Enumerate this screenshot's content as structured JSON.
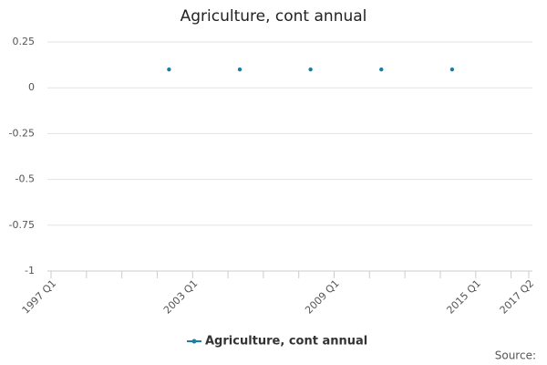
{
  "chart_data": {
    "type": "line",
    "title": "Agriculture, cont annual",
    "source": "Source:",
    "categories": [
      "1997 Q1",
      null,
      null,
      null,
      null,
      null,
      null,
      null,
      null,
      null,
      null,
      null,
      null,
      null,
      null,
      null,
      null,
      null,
      null,
      null,
      null,
      null,
      null,
      null,
      "2003 Q1",
      null,
      null,
      null,
      null,
      null,
      null,
      null,
      null,
      null,
      null,
      null,
      null,
      null,
      null,
      null,
      null,
      null,
      null,
      null,
      null,
      null,
      null,
      null,
      "2009 Q1",
      null,
      null,
      null,
      null,
      null,
      null,
      null,
      null,
      null,
      null,
      null,
      null,
      null,
      null,
      null,
      null,
      null,
      null,
      null,
      null,
      null,
      null,
      null,
      "2015 Q1",
      null,
      null,
      null,
      null,
      null,
      null,
      null,
      null,
      "2017 Q2"
    ],
    "series": [
      {
        "name": "Agriculture, cont annual",
        "color": "#1a7fa8",
        "values": [
          null,
          null,
          null,
          null,
          null,
          null,
          null,
          null,
          null,
          null,
          null,
          null,
          null,
          null,
          null,
          null,
          null,
          null,
          null,
          null,
          0.1,
          null,
          null,
          null,
          null,
          null,
          null,
          null,
          null,
          null,
          null,
          null,
          0.1,
          null,
          null,
          null,
          null,
          null,
          null,
          null,
          null,
          null,
          null,
          null,
          0.1,
          null,
          null,
          null,
          null,
          null,
          null,
          null,
          null,
          null,
          null,
          null,
          0.1,
          null,
          null,
          null,
          null,
          null,
          null,
          null,
          null,
          null,
          null,
          null,
          0.1,
          null,
          null,
          null,
          null,
          null,
          null,
          null,
          null,
          null,
          null,
          null,
          null,
          null
        ]
      }
    ],
    "ylim": [
      -1,
      0.25
    ],
    "yticks": [
      -1,
      -0.75,
      -0.5,
      -0.25,
      0,
      0.25
    ],
    "grid": true,
    "legend": "bottom"
  }
}
